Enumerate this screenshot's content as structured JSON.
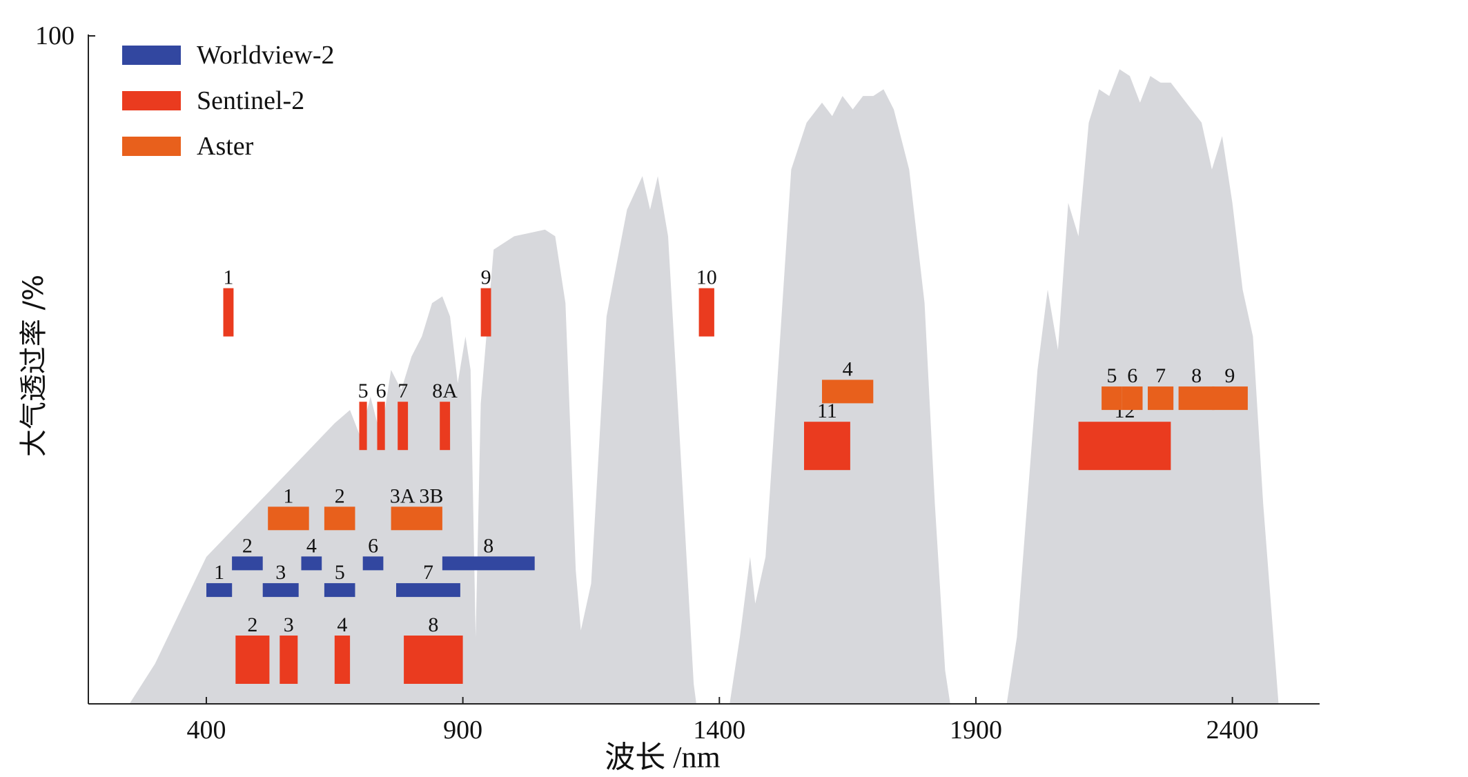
{
  "chart_data": {
    "type": "bar",
    "subtype": "band-ranges-over-atmospheric-transmission",
    "xlabel": "波长 /nm",
    "ylabel": "大气透过率 /%",
    "x_ticks": [
      "400",
      "900",
      "1400",
      "1900",
      "2400"
    ],
    "y_ticks": [
      "100"
    ],
    "xlim": [
      170,
      2570
    ],
    "ylim": [
      0,
      100
    ],
    "legend_position": "top-left",
    "grid": false,
    "colors": {
      "worldview2": "#3247a0",
      "sentinel2": "#ea3b1f",
      "aster": "#e8601c",
      "transmission": "#d7d8dc"
    },
    "legend": [
      {
        "key": "worldview2",
        "label": "Worldview-2"
      },
      {
        "key": "sentinel2",
        "label": "Sentinel-2"
      },
      {
        "key": "aster",
        "label": "Aster"
      }
    ],
    "transmission_curve": [
      [
        250,
        0
      ],
      [
        300,
        6
      ],
      [
        400,
        22
      ],
      [
        500,
        30
      ],
      [
        600,
        38
      ],
      [
        650,
        42
      ],
      [
        680,
        44
      ],
      [
        700,
        40
      ],
      [
        720,
        46
      ],
      [
        740,
        40
      ],
      [
        760,
        50
      ],
      [
        780,
        47
      ],
      [
        800,
        52
      ],
      [
        820,
        55
      ],
      [
        840,
        60
      ],
      [
        860,
        61
      ],
      [
        875,
        58
      ],
      [
        890,
        48
      ],
      [
        905,
        55
      ],
      [
        915,
        50
      ],
      [
        925,
        10
      ],
      [
        935,
        45
      ],
      [
        960,
        68
      ],
      [
        1000,
        70
      ],
      [
        1060,
        71
      ],
      [
        1080,
        70
      ],
      [
        1100,
        60
      ],
      [
        1120,
        20
      ],
      [
        1130,
        11
      ],
      [
        1150,
        18
      ],
      [
        1180,
        58
      ],
      [
        1220,
        74
      ],
      [
        1250,
        79
      ],
      [
        1265,
        74
      ],
      [
        1280,
        79
      ],
      [
        1300,
        70
      ],
      [
        1330,
        30
      ],
      [
        1350,
        3
      ],
      [
        1355,
        0
      ],
      [
        1420,
        0
      ],
      [
        1440,
        10
      ],
      [
        1460,
        22
      ],
      [
        1470,
        15
      ],
      [
        1490,
        22
      ],
      [
        1510,
        45
      ],
      [
        1540,
        80
      ],
      [
        1570,
        87
      ],
      [
        1600,
        90
      ],
      [
        1620,
        88
      ],
      [
        1640,
        91
      ],
      [
        1660,
        89
      ],
      [
        1680,
        91
      ],
      [
        1700,
        91
      ],
      [
        1720,
        92
      ],
      [
        1740,
        89
      ],
      [
        1770,
        80
      ],
      [
        1800,
        60
      ],
      [
        1820,
        30
      ],
      [
        1840,
        5
      ],
      [
        1850,
        0
      ],
      [
        1960,
        0
      ],
      [
        1980,
        10
      ],
      [
        2000,
        30
      ],
      [
        2020,
        50
      ],
      [
        2040,
        62
      ],
      [
        2060,
        53
      ],
      [
        2080,
        75
      ],
      [
        2100,
        70
      ],
      [
        2120,
        87
      ],
      [
        2140,
        92
      ],
      [
        2160,
        91
      ],
      [
        2180,
        95
      ],
      [
        2200,
        94
      ],
      [
        2220,
        90
      ],
      [
        2240,
        94
      ],
      [
        2260,
        93
      ],
      [
        2280,
        93
      ],
      [
        2300,
        91
      ],
      [
        2320,
        89
      ],
      [
        2340,
        87
      ],
      [
        2360,
        80
      ],
      [
        2380,
        85
      ],
      [
        2400,
        75
      ],
      [
        2420,
        62
      ],
      [
        2440,
        55
      ],
      [
        2460,
        30
      ],
      [
        2480,
        10
      ],
      [
        2490,
        0
      ]
    ],
    "series": [
      {
        "name": "Worldview-2",
        "color_key": "worldview2",
        "bands": [
          {
            "label": "1",
            "x0": 400,
            "x1": 450,
            "level": 16
          },
          {
            "label": "2",
            "x0": 450,
            "x1": 510,
            "level": 20
          },
          {
            "label": "3",
            "x0": 510,
            "x1": 580,
            "level": 16
          },
          {
            "label": "4",
            "x0": 585,
            "x1": 625,
            "level": 20
          },
          {
            "label": "5",
            "x0": 630,
            "x1": 690,
            "level": 16
          },
          {
            "label": "6",
            "x0": 705,
            "x1": 745,
            "level": 20
          },
          {
            "label": "7",
            "x0": 770,
            "x1": 895,
            "level": 16
          },
          {
            "label": "8",
            "x0": 860,
            "x1": 1040,
            "level": 20
          }
        ]
      },
      {
        "name": "Sentinel-2",
        "color_key": "sentinel2",
        "bands": [
          {
            "label": "1",
            "x0": 433,
            "x1": 453,
            "level": 55
          },
          {
            "label": "2",
            "x0": 457,
            "x1": 523,
            "level": 3
          },
          {
            "label": "3",
            "x0": 543,
            "x1": 578,
            "level": 3
          },
          {
            "label": "4",
            "x0": 650,
            "x1": 680,
            "level": 3
          },
          {
            "label": "5",
            "x0": 698,
            "x1": 713,
            "level": 38
          },
          {
            "label": "6",
            "x0": 733,
            "x1": 748,
            "level": 38
          },
          {
            "label": "7",
            "x0": 773,
            "x1": 793,
            "level": 38
          },
          {
            "label": "8",
            "x0": 785,
            "x1": 900,
            "level": 3
          },
          {
            "label": "8A",
            "x0": 855,
            "x1": 875,
            "level": 38
          },
          {
            "label": "9",
            "x0": 935,
            "x1": 955,
            "level": 55
          },
          {
            "label": "10",
            "x0": 1360,
            "x1": 1390,
            "level": 55
          },
          {
            "label": "11",
            "x0": 1565,
            "x1": 1655,
            "level": 35
          },
          {
            "label": "12",
            "x0": 2100,
            "x1": 2280,
            "level": 35
          }
        ]
      },
      {
        "name": "Aster",
        "color_key": "aster",
        "bands": [
          {
            "label": "1",
            "x0": 520,
            "x1": 600,
            "level": 26
          },
          {
            "label": "2",
            "x0": 630,
            "x1": 690,
            "level": 26
          },
          {
            "label": "3A 3B",
            "x0": 760,
            "x1": 860,
            "level": 26
          },
          {
            "label": "4",
            "x0": 1600,
            "x1": 1700,
            "level": 45
          },
          {
            "label": "5",
            "x0": 2145,
            "x1": 2185,
            "level": 44
          },
          {
            "label": "6",
            "x0": 2185,
            "x1": 2225,
            "level": 44
          },
          {
            "label": "7",
            "x0": 2235,
            "x1": 2285,
            "level": 44
          },
          {
            "label": "8",
            "x0": 2295,
            "x1": 2365,
            "level": 44
          },
          {
            "label": "9",
            "x0": 2360,
            "x1": 2430,
            "level": 44
          }
        ]
      }
    ]
  }
}
